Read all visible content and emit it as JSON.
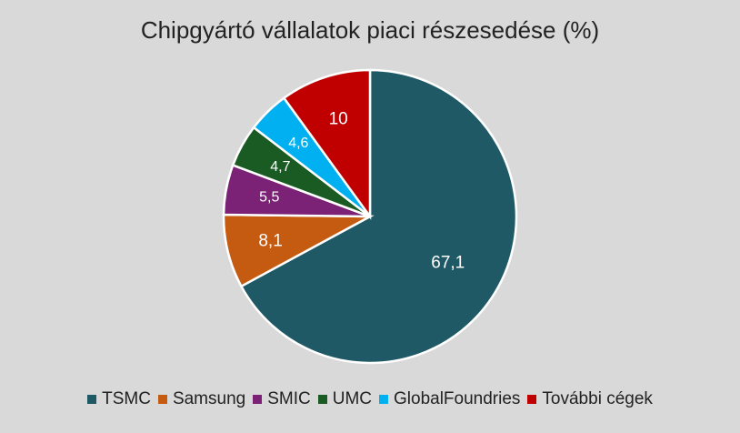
{
  "chart_data": {
    "type": "pie",
    "title": "Chipgyártó vállalatok piaci részesedése (%)",
    "legend_position": "bottom",
    "slices": [
      {
        "name": "TSMC",
        "value": 67.1,
        "label": "67,1",
        "color": "#1f5966"
      },
      {
        "name": "Samsung",
        "value": 8.1,
        "label": "8,1",
        "color": "#c55a11"
      },
      {
        "name": "SMIC",
        "value": 5.5,
        "label": "5,5",
        "color": "#7b2277"
      },
      {
        "name": "UMC",
        "value": 4.7,
        "label": "4,7",
        "color": "#1a5a23"
      },
      {
        "name": "GlobalFoundries",
        "value": 4.6,
        "label": "4,6",
        "color": "#00b0f0"
      },
      {
        "name": "További cégek",
        "value": 10,
        "label": "10",
        "color": "#c00000"
      }
    ]
  }
}
